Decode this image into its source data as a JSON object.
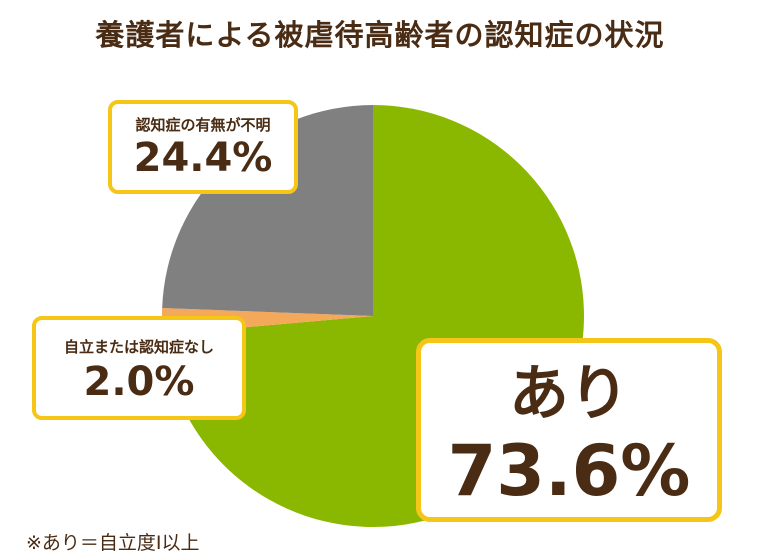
{
  "chart_data": {
    "type": "pie",
    "title": "養護者による被虐待高齢者の認知症の状況",
    "slices": [
      {
        "label": "あり",
        "value": 73.6,
        "display": "73.6%",
        "color": "#8ab800"
      },
      {
        "label": "自立または認知症なし",
        "value": 2.0,
        "display": "2.0%",
        "color": "#f4a85a"
      },
      {
        "label": "認知症の有無が不明",
        "value": 24.4,
        "display": "24.4%",
        "color": "#808080"
      }
    ],
    "start_angle_deg": 0,
    "direction": "clockwise",
    "footnote": "※あり＝自立度Ⅰ以上"
  }
}
